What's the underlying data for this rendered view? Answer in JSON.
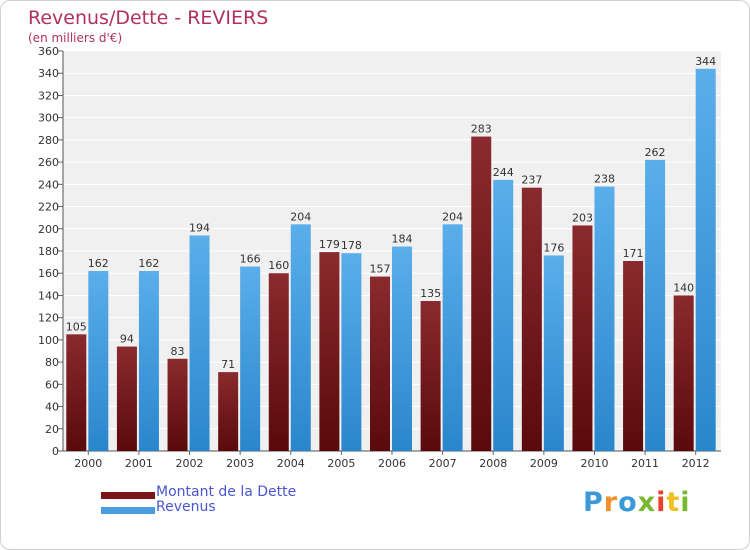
{
  "title": "Revenus/Dette - REVIERS",
  "subtitle": "(en milliers d'€)",
  "logo_text": "Proxiti",
  "colors": {
    "dette": "#7a1518",
    "revenus": "#4a9de0",
    "title": "#b03060",
    "legend_text": "#4a56d0"
  },
  "chart_data": {
    "type": "bar",
    "categories": [
      "2000",
      "2001",
      "2002",
      "2003",
      "2004",
      "2005",
      "2006",
      "2007",
      "2008",
      "2009",
      "2010",
      "2011",
      "2012"
    ],
    "series": [
      {
        "name": "Montant de la Dette",
        "values": [
          105,
          94,
          83,
          71,
          160,
          179,
          157,
          135,
          283,
          237,
          203,
          171,
          140
        ]
      },
      {
        "name": "Revenus",
        "values": [
          162,
          162,
          194,
          166,
          204,
          178,
          184,
          204,
          244,
          176,
          238,
          262,
          344
        ]
      }
    ],
    "ylim": [
      0,
      360
    ],
    "ytick_step": 20,
    "grid": true,
    "legend": "bottom-left"
  }
}
